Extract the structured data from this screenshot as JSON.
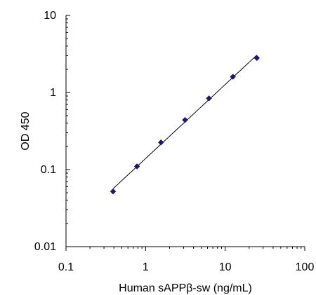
{
  "chart_data": {
    "type": "scatter",
    "title": "",
    "xlabel": "Human sAPPβ-sw (ng/mL)",
    "ylabel": "OD 450",
    "xscale": "log",
    "yscale": "log",
    "xlim": [
      0.1,
      100
    ],
    "ylim": [
      0.01,
      10
    ],
    "grid": false,
    "legend": "none",
    "x_ticks": [
      0.1,
      1,
      10,
      100
    ],
    "x_tick_labels": [
      "0.1",
      "1",
      "10",
      "100"
    ],
    "y_ticks": [
      0.01,
      0.1,
      1,
      10
    ],
    "y_tick_labels": [
      "0.01",
      "0.1",
      "1",
      "10"
    ],
    "series": [
      {
        "x": [
          0.39,
          0.78,
          1.56,
          3.13,
          6.25,
          12.5,
          25
        ],
        "y": [
          0.052,
          0.11,
          0.225,
          0.44,
          0.84,
          1.6,
          2.8
        ],
        "marker": "diamond",
        "marker_color": "#1a1a6e",
        "line": "fit",
        "line_color": "#000000"
      }
    ]
  }
}
